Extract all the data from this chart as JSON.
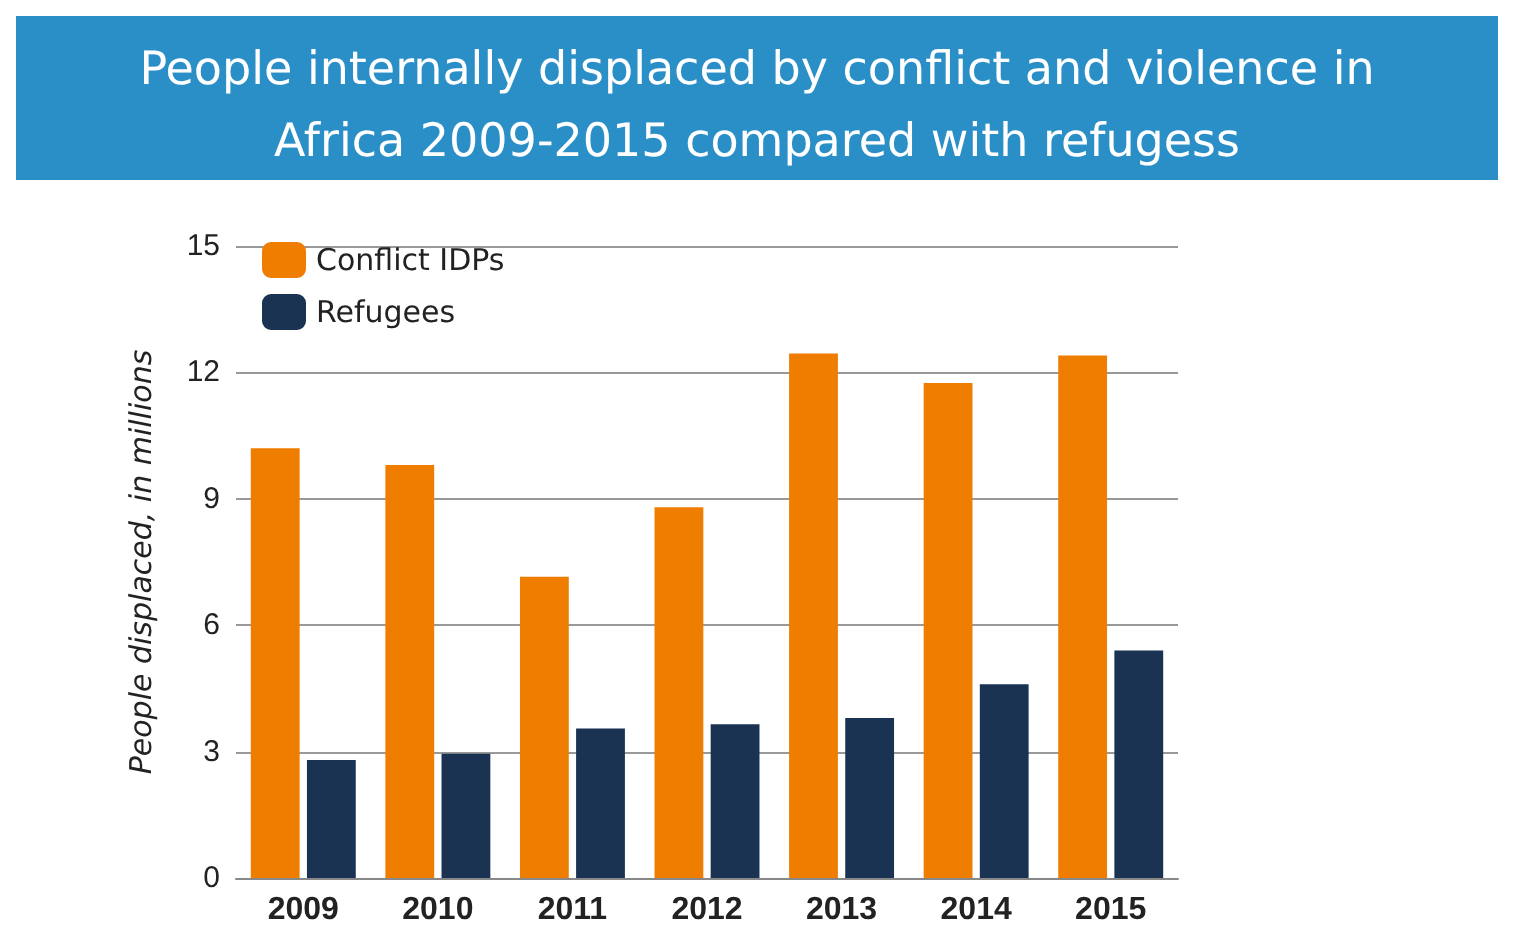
{
  "chart_data": {
    "type": "bar",
    "title": "People internally displaced by conflict and violence in\nAfrica 2009-2015 compared with refugess",
    "ylabel": "People displaced, in millions",
    "categories": [
      "2009",
      "2010",
      "2011",
      "2012",
      "2013",
      "2014",
      "2015"
    ],
    "series": [
      {
        "name": "Conflict IDPs",
        "color": "#ef7d00",
        "values": [
          10.2,
          9.8,
          7.15,
          8.8,
          12.45,
          11.75,
          12.4
        ]
      },
      {
        "name": "Refugees",
        "color": "#1b3352",
        "values": [
          2.8,
          2.95,
          3.55,
          3.65,
          3.8,
          4.6,
          5.4
        ]
      }
    ],
    "ylim": [
      0,
      15
    ],
    "yticks": [
      0,
      3,
      6,
      9,
      12,
      15
    ],
    "grid": "y",
    "legend": "top left"
  }
}
